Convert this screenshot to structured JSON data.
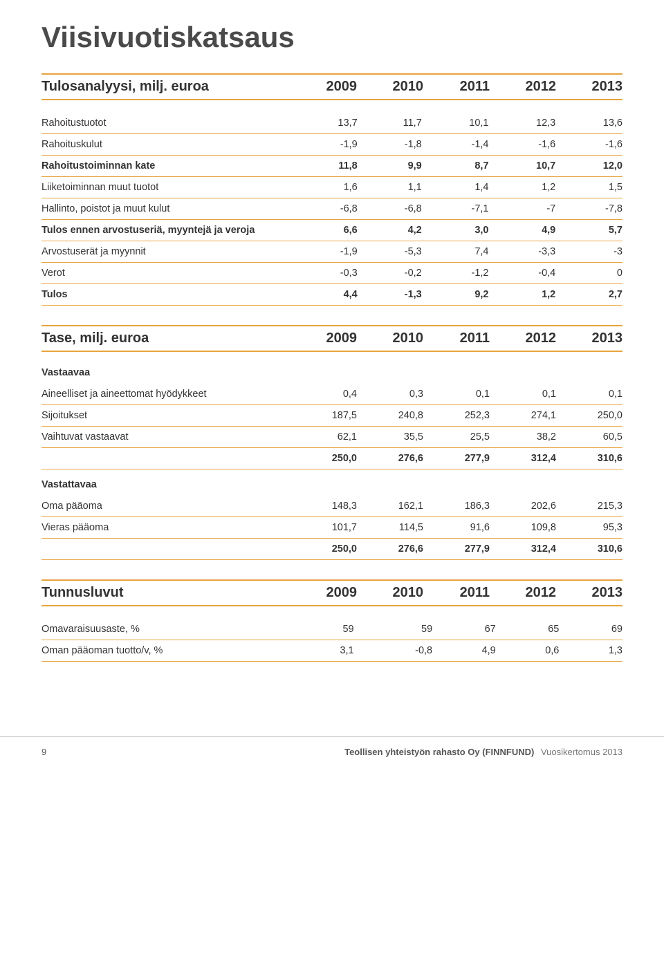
{
  "title": "Viisivuotiskatsaus",
  "years": [
    "2009",
    "2010",
    "2011",
    "2012",
    "2013"
  ],
  "section1": {
    "label": "Tulosanalyysi, milj. euroa",
    "rows": [
      {
        "label": "Rahoitustuotot",
        "v": [
          "13,7",
          "11,7",
          "10,1",
          "12,3",
          "13,6"
        ],
        "bold": false
      },
      {
        "label": "Rahoituskulut",
        "v": [
          "-1,9",
          "-1,8",
          "-1,4",
          "-1,6",
          "-1,6"
        ],
        "bold": false
      },
      {
        "label": "Rahoitustoiminnan kate",
        "v": [
          "11,8",
          "9,9",
          "8,7",
          "10,7",
          "12,0"
        ],
        "bold": true
      },
      {
        "label": "Liiketoiminnan muut tuotot",
        "v": [
          "1,6",
          "1,1",
          "1,4",
          "1,2",
          "1,5"
        ],
        "bold": false
      },
      {
        "label": "Hallinto, poistot ja muut kulut",
        "v": [
          "-6,8",
          "-6,8",
          "-7,1",
          "-7",
          "-7,8"
        ],
        "bold": false
      },
      {
        "label": "Tulos ennen arvostuseriä, myyntejä ja veroja",
        "v": [
          "6,6",
          "4,2",
          "3,0",
          "4,9",
          "5,7"
        ],
        "bold": true
      },
      {
        "label": "Arvostuserät ja myynnit",
        "v": [
          "-1,9",
          "-5,3",
          "7,4",
          "-3,3",
          "-3"
        ],
        "bold": false
      },
      {
        "label": "Verot",
        "v": [
          "-0,3",
          "-0,2",
          "-1,2",
          "-0,4",
          "0"
        ],
        "bold": false
      },
      {
        "label": "Tulos",
        "v": [
          "4,4",
          "-1,3",
          "9,2",
          "1,2",
          "2,7"
        ],
        "bold": true
      }
    ]
  },
  "section2": {
    "label": "Tase, milj. euroa",
    "sub1": "Vastaavaa",
    "rows1": [
      {
        "label": "Aineelliset ja aineettomat hyödykkeet",
        "v": [
          "0,4",
          "0,3",
          "0,1",
          "0,1",
          "0,1"
        ],
        "bold": false
      },
      {
        "label": "Sijoitukset",
        "v": [
          "187,5",
          "240,8",
          "252,3",
          "274,1",
          "250,0"
        ],
        "bold": false
      },
      {
        "label": "Vaihtuvat vastaavat",
        "v": [
          "62,1",
          "35,5",
          "25,5",
          "38,2",
          "60,5"
        ],
        "bold": false
      },
      {
        "label": "",
        "v": [
          "250,0",
          "276,6",
          "277,9",
          "312,4",
          "310,6"
        ],
        "bold": true
      }
    ],
    "sub2": "Vastattavaa",
    "rows2": [
      {
        "label": "Oma pääoma",
        "v": [
          "148,3",
          "162,1",
          "186,3",
          "202,6",
          "215,3"
        ],
        "bold": false
      },
      {
        "label": "Vieras pääoma",
        "v": [
          "101,7",
          "114,5",
          "91,6",
          "109,8",
          "95,3"
        ],
        "bold": false
      },
      {
        "label": "",
        "v": [
          "250,0",
          "276,6",
          "277,9",
          "312,4",
          "310,6"
        ],
        "bold": true
      }
    ]
  },
  "section3": {
    "label": "Tunnusluvut",
    "rows": [
      {
        "label": "Omavaraisuusaste, %",
        "v": [
          "59",
          "59",
          "67",
          "65",
          "69"
        ],
        "bold": false
      },
      {
        "label": "Oman pääoman tuotto/v, %",
        "v": [
          "3,1",
          "-0,8",
          "4,9",
          "0,6",
          "1,3"
        ],
        "bold": false
      }
    ]
  },
  "footer": {
    "page": "9",
    "company": "Teollisen yhteistyön rahasto Oy (FINNFUND)",
    "report": "Vuosikertomus 2013"
  },
  "style": {
    "accent": "#e8a33d",
    "title_color": "#4a4a4a",
    "text_color": "#333333"
  }
}
